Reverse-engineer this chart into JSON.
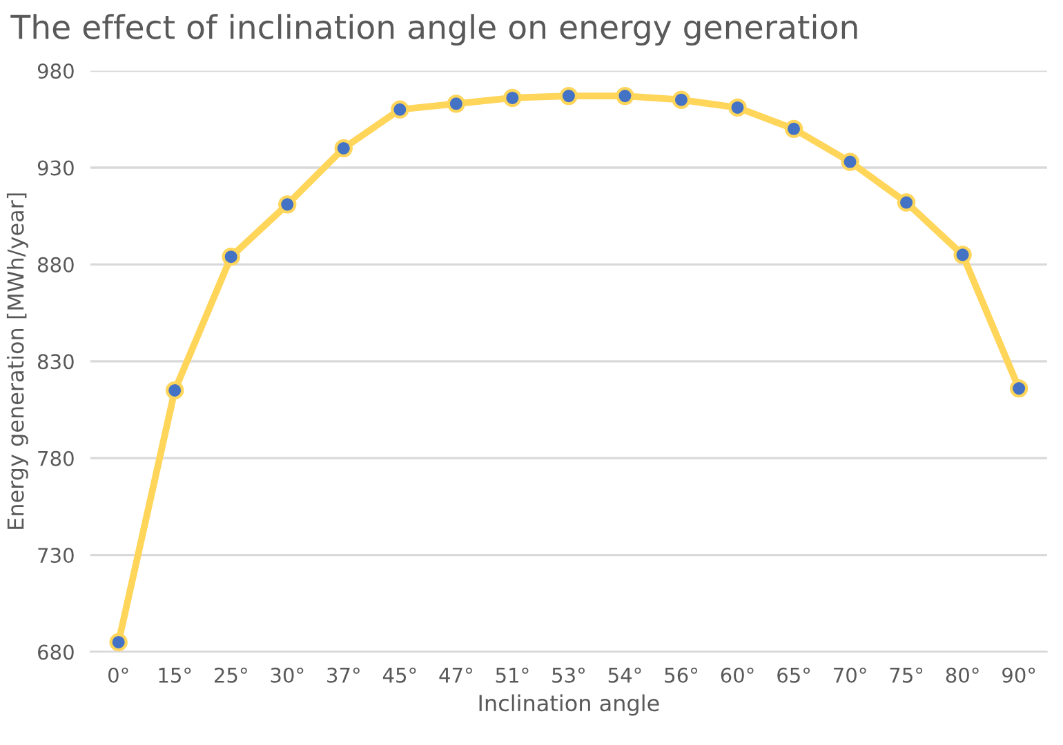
{
  "chart_data": {
    "type": "line",
    "title": "The effect of inclination angle on energy generation",
    "xlabel": "Inclination angle",
    "ylabel": "Energy generation [MWh/year]",
    "categories": [
      "0°",
      "15°",
      "25°",
      "30°",
      "37°",
      "45°",
      "47°",
      "51°",
      "53°",
      "54°",
      "56°",
      "60°",
      "65°",
      "70°",
      "75°",
      "80°",
      "90°"
    ],
    "series": [
      {
        "color": "#ffd55a",
        "values": [
          685,
          815,
          884,
          911,
          940,
          960,
          963,
          966,
          967,
          967,
          965,
          961,
          950,
          933,
          912,
          885,
          816
        ]
      }
    ],
    "ylim": [
      680,
      980
    ],
    "yticks": [
      680,
      730,
      780,
      830,
      880,
      930,
      980
    ],
    "grid": "y",
    "marker": "circle",
    "line_style": "solid"
  }
}
